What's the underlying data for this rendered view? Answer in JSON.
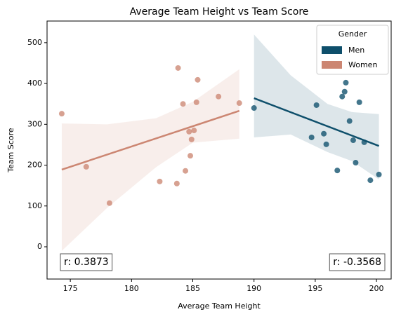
{
  "chart_data": {
    "type": "scatter",
    "title": "Average Team Height vs Team Score",
    "x_label": "Average Team Height",
    "y_label": "Team Score",
    "xlim": [
      173.1,
      201.2
    ],
    "ylim": [
      -79,
      553
    ],
    "xticks": [
      175,
      180,
      185,
      190,
      195,
      200
    ],
    "yticks": [
      0,
      100,
      200,
      300,
      400,
      500
    ],
    "legend": {
      "title": "Gender",
      "loc": "upper right"
    },
    "series": [
      {
        "name": "Men",
        "color": "#0e4f6b",
        "r_label": "r: -0.3568",
        "r_loc": "lower right",
        "x": [
          190.0,
          194.7,
          195.1,
          195.7,
          195.9,
          196.8,
          197.2,
          197.4,
          197.5,
          197.8,
          198.1,
          198.3,
          198.6,
          199.0,
          199.5,
          200.2
        ],
        "values": [
          340,
          268,
          347,
          277,
          251,
          187,
          368,
          380,
          402,
          308,
          261,
          206,
          354,
          256,
          163,
          177
        ],
        "fit": {
          "x": [
            190.0,
            200.2
          ],
          "values": [
            364,
            247
          ]
        },
        "band": {
          "x": [
            190.0,
            193.0,
            196.0,
            198.0,
            200.2
          ],
          "lower": [
            268,
            275,
            232,
            210,
            165
          ],
          "upper": [
            520,
            420,
            350,
            330,
            325
          ]
        }
      },
      {
        "name": "Women",
        "color": "#cc8672",
        "r_label": "r: 0.3873",
        "r_loc": "lower left",
        "x": [
          174.3,
          176.3,
          178.2,
          182.3,
          183.7,
          183.8,
          184.2,
          184.4,
          184.7,
          184.8,
          184.9,
          185.1,
          185.3,
          185.4,
          187.1,
          188.8
        ],
        "values": [
          326,
          196,
          107,
          160,
          155,
          438,
          350,
          186,
          282,
          223,
          263,
          285,
          354,
          409,
          368,
          352
        ],
        "fit": {
          "x": [
            174.3,
            188.8
          ],
          "values": [
            189,
            333
          ]
        },
        "band": {
          "x": [
            174.3,
            178.0,
            182.0,
            185.0,
            188.8
          ],
          "lower": [
            -10,
            95,
            195,
            255,
            265
          ],
          "upper": [
            302,
            300,
            315,
            355,
            435
          ]
        }
      }
    ]
  }
}
